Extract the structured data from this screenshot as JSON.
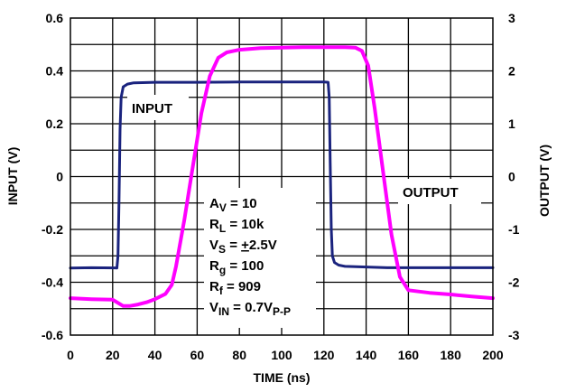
{
  "chart_data": {
    "type": "line",
    "xlabel": "TIME (ns)",
    "ylabel_left": "INPUT (V)",
    "ylabel_right": "OUTPUT (V)",
    "xlim": [
      0,
      200
    ],
    "ylim_left": [
      -0.6,
      0.6
    ],
    "ylim_right": [
      -3,
      3
    ],
    "x_ticks": [
      "0",
      "20",
      "40",
      "60",
      "80",
      "100",
      "120",
      "140",
      "160",
      "180",
      "200"
    ],
    "y_left_ticks": [
      "0.6",
      "0.4",
      "0.2",
      "0",
      "-0.2",
      "-0.4",
      "-0.6"
    ],
    "y_right_ticks": [
      "3",
      "2",
      "1",
      "0",
      "-1",
      "-2",
      "-3"
    ],
    "grid": true,
    "colors": {
      "input": "#1a237e",
      "output": "#ff00ff",
      "grid": "#000000"
    },
    "annotations": {
      "input_label": "INPUT",
      "output_label": "OUTPUT"
    },
    "conditions": [
      {
        "main": "A",
        "sub": "V",
        "rest": " = 10"
      },
      {
        "main": "R",
        "sub": "L",
        "rest": " = 10k"
      },
      {
        "main": "V",
        "sub": "S",
        "rest": " = ",
        "underline": "+",
        "after": "2.5V"
      },
      {
        "main": "R",
        "sub": "g",
        "rest": " = 100"
      },
      {
        "main": "R",
        "sub": "f",
        "rest": " = 909"
      },
      {
        "main": "V",
        "sub": "IN",
        "rest": " = 0.7V",
        "sub2": "P-P"
      }
    ],
    "series": [
      {
        "name": "INPUT",
        "axis": "left",
        "x": [
          0,
          10,
          22,
          22.5,
          23,
          23.5,
          24,
          25,
          27,
          30,
          40,
          60,
          80,
          100,
          110,
          120,
          122,
          122.5,
          123,
          123.5,
          124,
          125,
          127,
          130,
          150,
          180,
          200
        ],
        "y": [
          -0.346,
          -0.345,
          -0.346,
          -0.3,
          -0.1,
          0.18,
          0.3,
          0.34,
          0.35,
          0.355,
          0.357,
          0.357,
          0.358,
          0.358,
          0.358,
          0.358,
          0.357,
          0.3,
          0.05,
          -0.2,
          -0.3,
          -0.325,
          -0.335,
          -0.34,
          -0.345,
          -0.345,
          -0.345
        ]
      },
      {
        "name": "OUTPUT",
        "axis": "right",
        "x": [
          0,
          10,
          20,
          25,
          28,
          32,
          36,
          40,
          45,
          48,
          50,
          54,
          58,
          62,
          66,
          70,
          74,
          80,
          90,
          100,
          110,
          120,
          130,
          135,
          138,
          141,
          144,
          148,
          152,
          156,
          160,
          170,
          180,
          190,
          200
        ],
        "y": [
          -2.3,
          -2.32,
          -2.33,
          -2.45,
          -2.45,
          -2.42,
          -2.38,
          -2.32,
          -2.22,
          -2.05,
          -1.7,
          -0.8,
          0.2,
          1.2,
          1.9,
          2.25,
          2.35,
          2.4,
          2.43,
          2.44,
          2.45,
          2.45,
          2.45,
          2.44,
          2.38,
          2.1,
          1.3,
          0.1,
          -1.1,
          -1.9,
          -2.15,
          -2.2,
          -2.23,
          -2.27,
          -2.3
        ]
      }
    ]
  }
}
